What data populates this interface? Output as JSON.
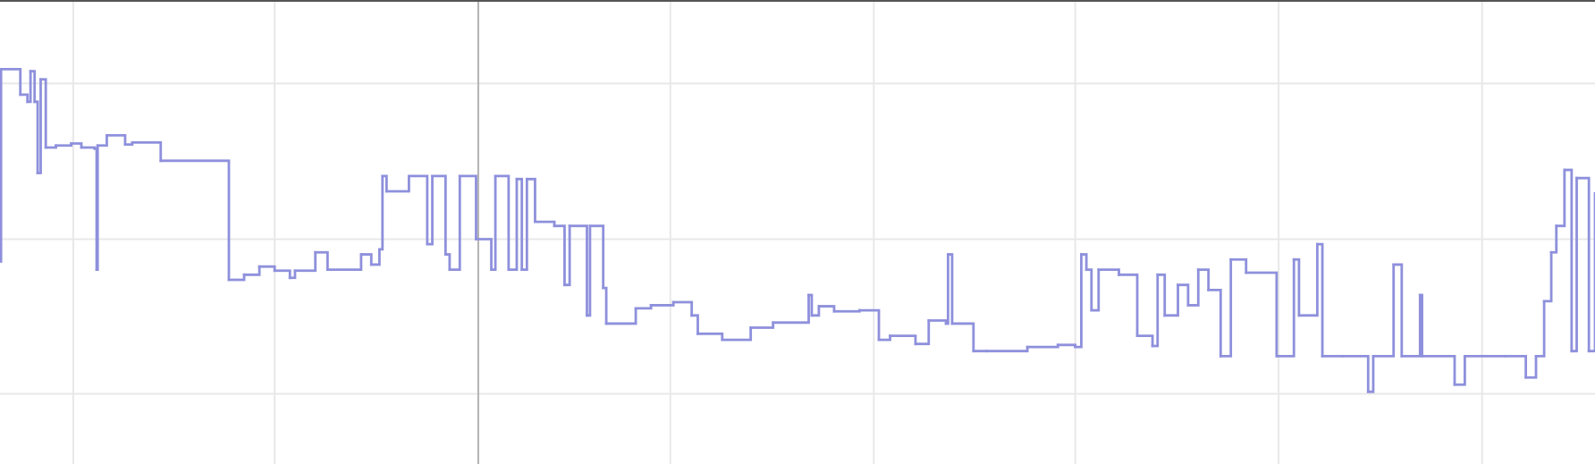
{
  "chart_data": {
    "type": "line",
    "step": "after",
    "color": "#8e90dc",
    "grid": true,
    "xlim": [
      0,
      1568
    ],
    "xticks": [
      72,
      270,
      470,
      659,
      859,
      1057,
      1257,
      1457
    ],
    "ylim": [
      0,
      456
    ],
    "yticks": [
      69,
      221,
      374
    ],
    "x": [
      0,
      1,
      20,
      27,
      30,
      34,
      37,
      40,
      45,
      55,
      70,
      80,
      93,
      95,
      96,
      105,
      123,
      130,
      158,
      225,
      240,
      255,
      270,
      285,
      290,
      310,
      322,
      355,
      365,
      373,
      376,
      380,
      402,
      420,
      425,
      438,
      442,
      452,
      468,
      483,
      487,
      500,
      508,
      513,
      518,
      526,
      545,
      555,
      560,
      577,
      580,
      593,
      596,
      625,
      640,
      662,
      680,
      686,
      710,
      738,
      760,
      795,
      798,
      805,
      820,
      845,
      864,
      875,
      900,
      913,
      930,
      932,
      936,
      957,
      970,
      1010,
      1040,
      1057,
      1063,
      1068,
      1073,
      1080,
      1100,
      1118,
      1133,
      1138,
      1145,
      1158,
      1168,
      1178,
      1188,
      1200,
      1210,
      1225,
      1255,
      1272,
      1277,
      1295,
      1300,
      1320,
      1345,
      1350,
      1370,
      1378,
      1396,
      1398,
      1430,
      1440,
      1480,
      1500,
      1510,
      1518,
      1525,
      1530,
      1538,
      1545,
      1550,
      1562,
      1568
    ],
    "values": [
      199,
      388,
      363,
      356,
      386,
      356,
      286,
      378,
      311,
      313,
      315,
      311,
      310,
      191,
      313,
      323,
      314,
      316,
      298,
      181,
      186,
      194,
      190,
      183,
      190,
      208,
      191,
      206,
      196,
      211,
      283,
      268,
      283,
      216,
      283,
      206,
      191,
      283,
      221,
      191,
      283,
      191,
      280,
      191,
      280,
      238,
      234,
      176,
      234,
      146,
      234,
      173,
      138,
      153,
      156,
      159,
      146,
      128,
      122,
      134,
      139,
      166,
      146,
      155,
      150,
      151,
      122,
      126,
      118,
      141,
      138,
      206,
      138,
      111,
      111,
      115,
      117,
      115,
      206,
      191,
      151,
      191,
      186,
      126,
      116,
      186,
      146,
      176,
      156,
      191,
      171,
      106,
      201,
      188,
      106,
      201,
      146,
      216,
      106,
      106,
      71,
      106,
      196,
      106,
      166,
      106,
      78,
      106,
      106,
      85,
      106,
      160,
      208,
      234,
      289,
      111,
      281,
      111,
      266
    ]
  }
}
